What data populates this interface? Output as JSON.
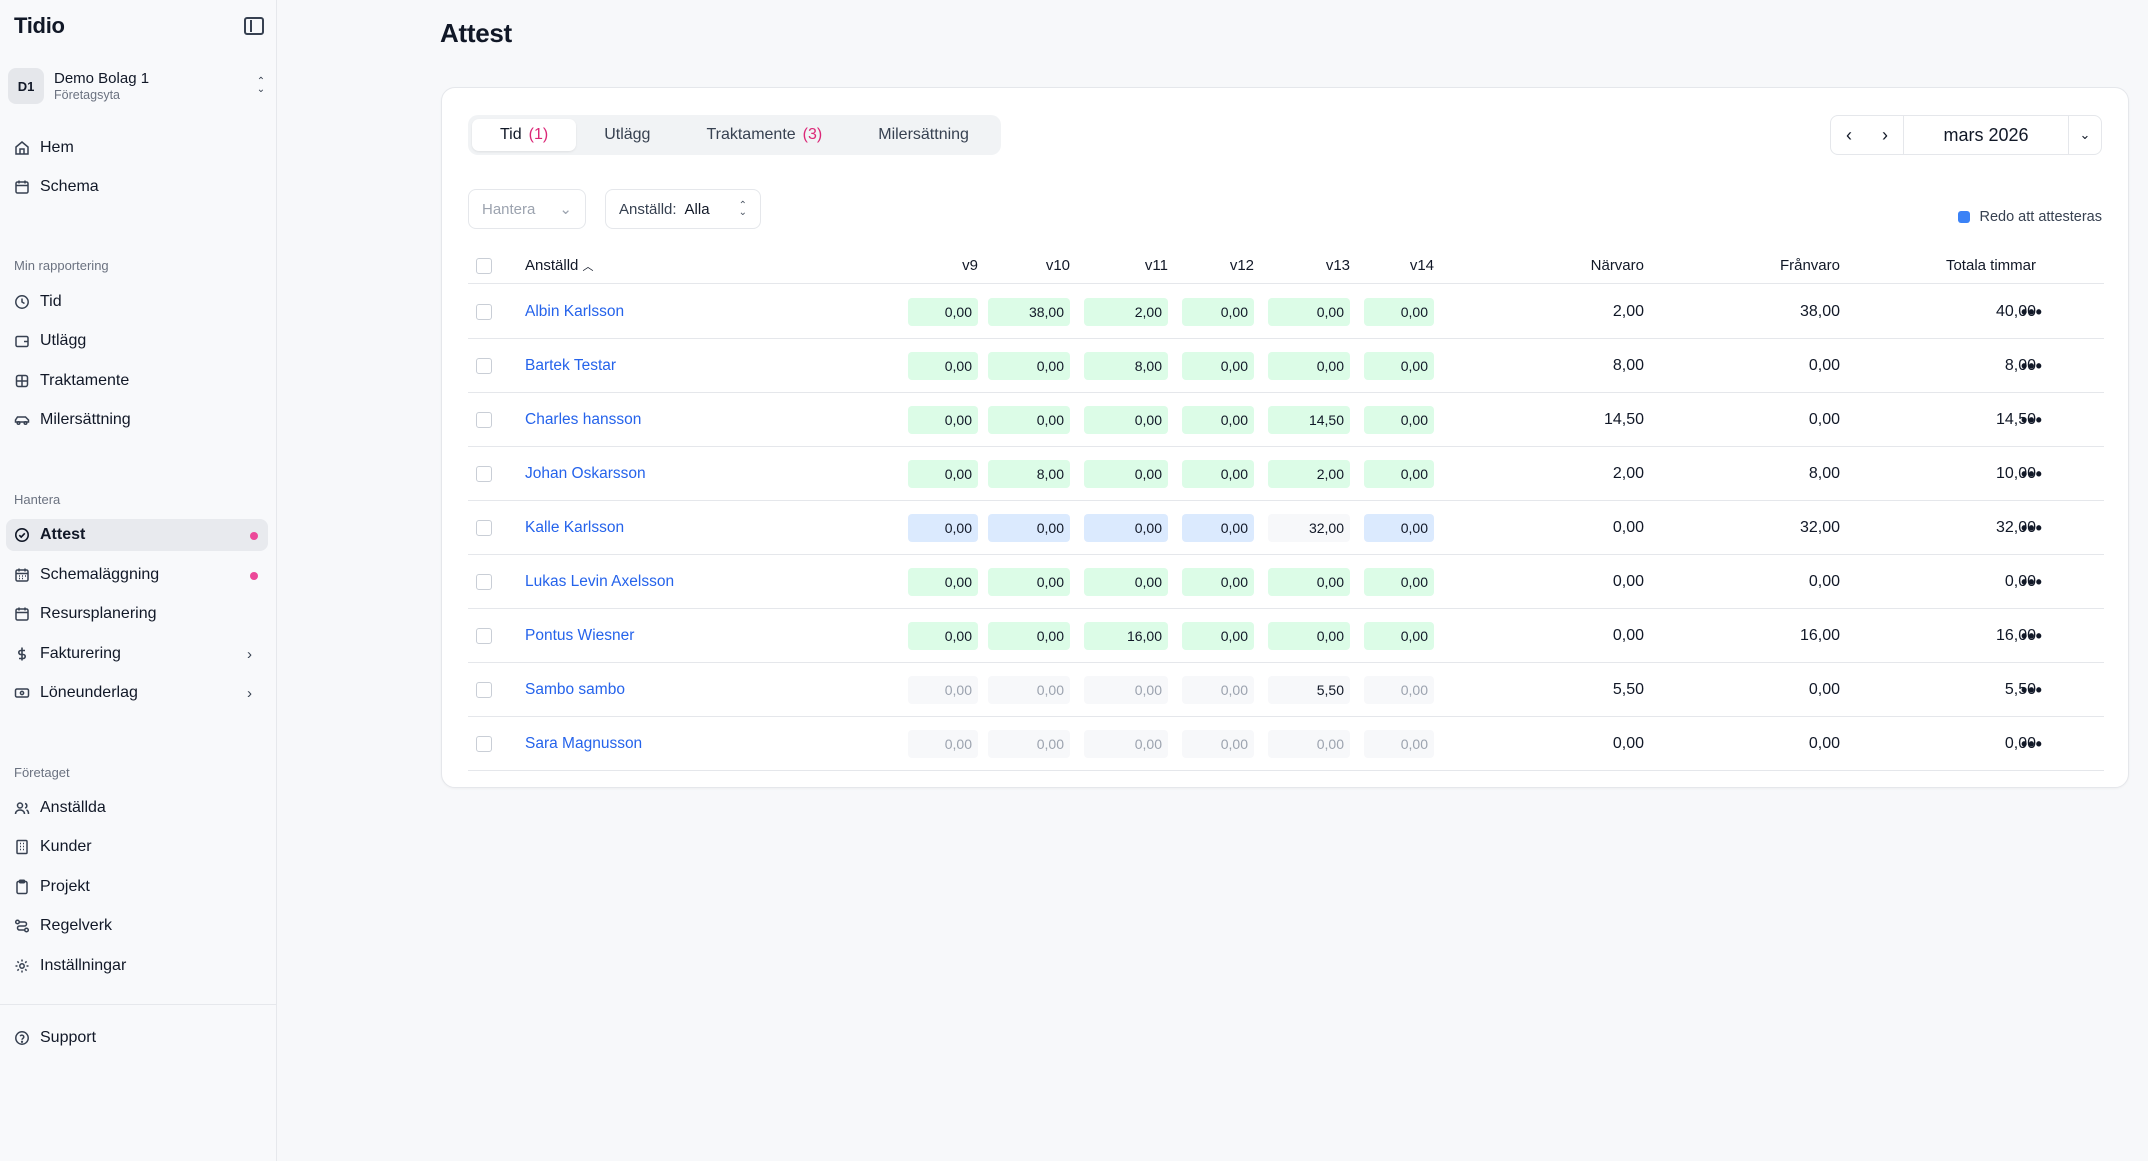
{
  "app": {
    "brand": "Tidio"
  },
  "org": {
    "initials": "D1",
    "name": "Demo Bolag 1",
    "subtitle": "Företagsyta"
  },
  "nav": {
    "main": [
      {
        "label": "Hem",
        "icon": "home-icon"
      },
      {
        "label": "Schema",
        "icon": "calendar-icon"
      }
    ],
    "section_reporting": "Min rapportering",
    "reporting": [
      {
        "label": "Tid",
        "icon": "clock-icon"
      },
      {
        "label": "Utlägg",
        "icon": "wallet-icon"
      },
      {
        "label": "Traktamente",
        "icon": "food-icon"
      },
      {
        "label": "Milersättning",
        "icon": "car-icon"
      }
    ],
    "section_manage": "Hantera",
    "manage": [
      {
        "label": "Attest",
        "icon": "check-circle-icon"
      },
      {
        "label": "Schemaläggning",
        "icon": "calendar-grid-icon"
      },
      {
        "label": "Resursplanering",
        "icon": "calendar-plan-icon"
      },
      {
        "label": "Fakturering",
        "icon": "dollar-icon"
      },
      {
        "label": "Löneunderlag",
        "icon": "banknote-icon"
      }
    ],
    "section_company": "Företaget",
    "company": [
      {
        "label": "Anställda",
        "icon": "users-icon"
      },
      {
        "label": "Kunder",
        "icon": "building-icon"
      },
      {
        "label": "Projekt",
        "icon": "clipboard-icon"
      },
      {
        "label": "Regelverk",
        "icon": "route-icon"
      },
      {
        "label": "Inställningar",
        "icon": "gear-icon"
      }
    ],
    "support": {
      "label": "Support",
      "icon": "help-circle-icon"
    }
  },
  "page": {
    "title": "Attest"
  },
  "tabs": [
    {
      "label": "Tid",
      "count": "(1)"
    },
    {
      "label": "Utlägg",
      "count": ""
    },
    {
      "label": "Traktamente",
      "count": "(3)"
    },
    {
      "label": "Milersättning",
      "count": ""
    }
  ],
  "period": {
    "label": "mars 2026"
  },
  "filters": {
    "manage_placeholder": "Hantera",
    "employee_label": "Anställd:",
    "employee_value": "Alla"
  },
  "legend": {
    "ready": "Redo att attesteras",
    "ready_color": "#3b82f6"
  },
  "table": {
    "headers": {
      "employee": "Anställd",
      "weeks": [
        "v9",
        "v10",
        "v11",
        "v12",
        "v13",
        "v14"
      ],
      "present": "Närvaro",
      "absent": "Frånvaro",
      "total": "Totala timmar"
    },
    "rows": [
      {
        "name": "Albin Karlsson",
        "weeks": [
          "0,00",
          "38,00",
          "2,00",
          "0,00",
          "0,00",
          "0,00"
        ],
        "styles": [
          "green",
          "green",
          "green",
          "green",
          "green",
          "green"
        ],
        "present": "2,00",
        "absent": "38,00",
        "total": "40,00"
      },
      {
        "name": "Bartek Testar",
        "weeks": [
          "0,00",
          "0,00",
          "8,00",
          "0,00",
          "0,00",
          "0,00"
        ],
        "styles": [
          "green",
          "green",
          "green",
          "green",
          "green",
          "green"
        ],
        "present": "8,00",
        "absent": "0,00",
        "total": "8,00"
      },
      {
        "name": "Charles hansson",
        "weeks": [
          "0,00",
          "0,00",
          "0,00",
          "0,00",
          "14,50",
          "0,00"
        ],
        "styles": [
          "green",
          "green",
          "green",
          "green",
          "green",
          "green"
        ],
        "present": "14,50",
        "absent": "0,00",
        "total": "14,50"
      },
      {
        "name": "Johan Oskarsson",
        "weeks": [
          "0,00",
          "8,00",
          "0,00",
          "0,00",
          "2,00",
          "0,00"
        ],
        "styles": [
          "green",
          "green",
          "green",
          "green",
          "green",
          "green"
        ],
        "present": "2,00",
        "absent": "8,00",
        "total": "10,00"
      },
      {
        "name": "Kalle Karlsson",
        "weeks": [
          "0,00",
          "0,00",
          "0,00",
          "0,00",
          "32,00",
          "0,00"
        ],
        "styles": [
          "blue",
          "blue",
          "blue",
          "blue",
          "plain",
          "blue"
        ],
        "present": "0,00",
        "absent": "32,00",
        "total": "32,00"
      },
      {
        "name": "Lukas Levin Axelsson",
        "weeks": [
          "0,00",
          "0,00",
          "0,00",
          "0,00",
          "0,00",
          "0,00"
        ],
        "styles": [
          "green",
          "green",
          "green",
          "green",
          "green",
          "green"
        ],
        "present": "0,00",
        "absent": "0,00",
        "total": "0,00"
      },
      {
        "name": "Pontus Wiesner",
        "weeks": [
          "0,00",
          "0,00",
          "16,00",
          "0,00",
          "0,00",
          "0,00"
        ],
        "styles": [
          "green",
          "green",
          "green",
          "green",
          "green",
          "green"
        ],
        "present": "0,00",
        "absent": "16,00",
        "total": "16,00"
      },
      {
        "name": "Sambo sambo",
        "weeks": [
          "0,00",
          "0,00",
          "0,00",
          "0,00",
          "5,50",
          "0,00"
        ],
        "styles": [
          "gray",
          "gray",
          "gray",
          "gray",
          "plain",
          "gray"
        ],
        "present": "5,50",
        "absent": "0,00",
        "total": "5,50"
      },
      {
        "name": "Sara Magnusson",
        "weeks": [
          "0,00",
          "0,00",
          "0,00",
          "0,00",
          "0,00",
          "0,00"
        ],
        "styles": [
          "gray",
          "gray",
          "gray",
          "gray",
          "gray",
          "gray"
        ],
        "present": "0,00",
        "absent": "0,00",
        "total": "0,00"
      }
    ]
  }
}
